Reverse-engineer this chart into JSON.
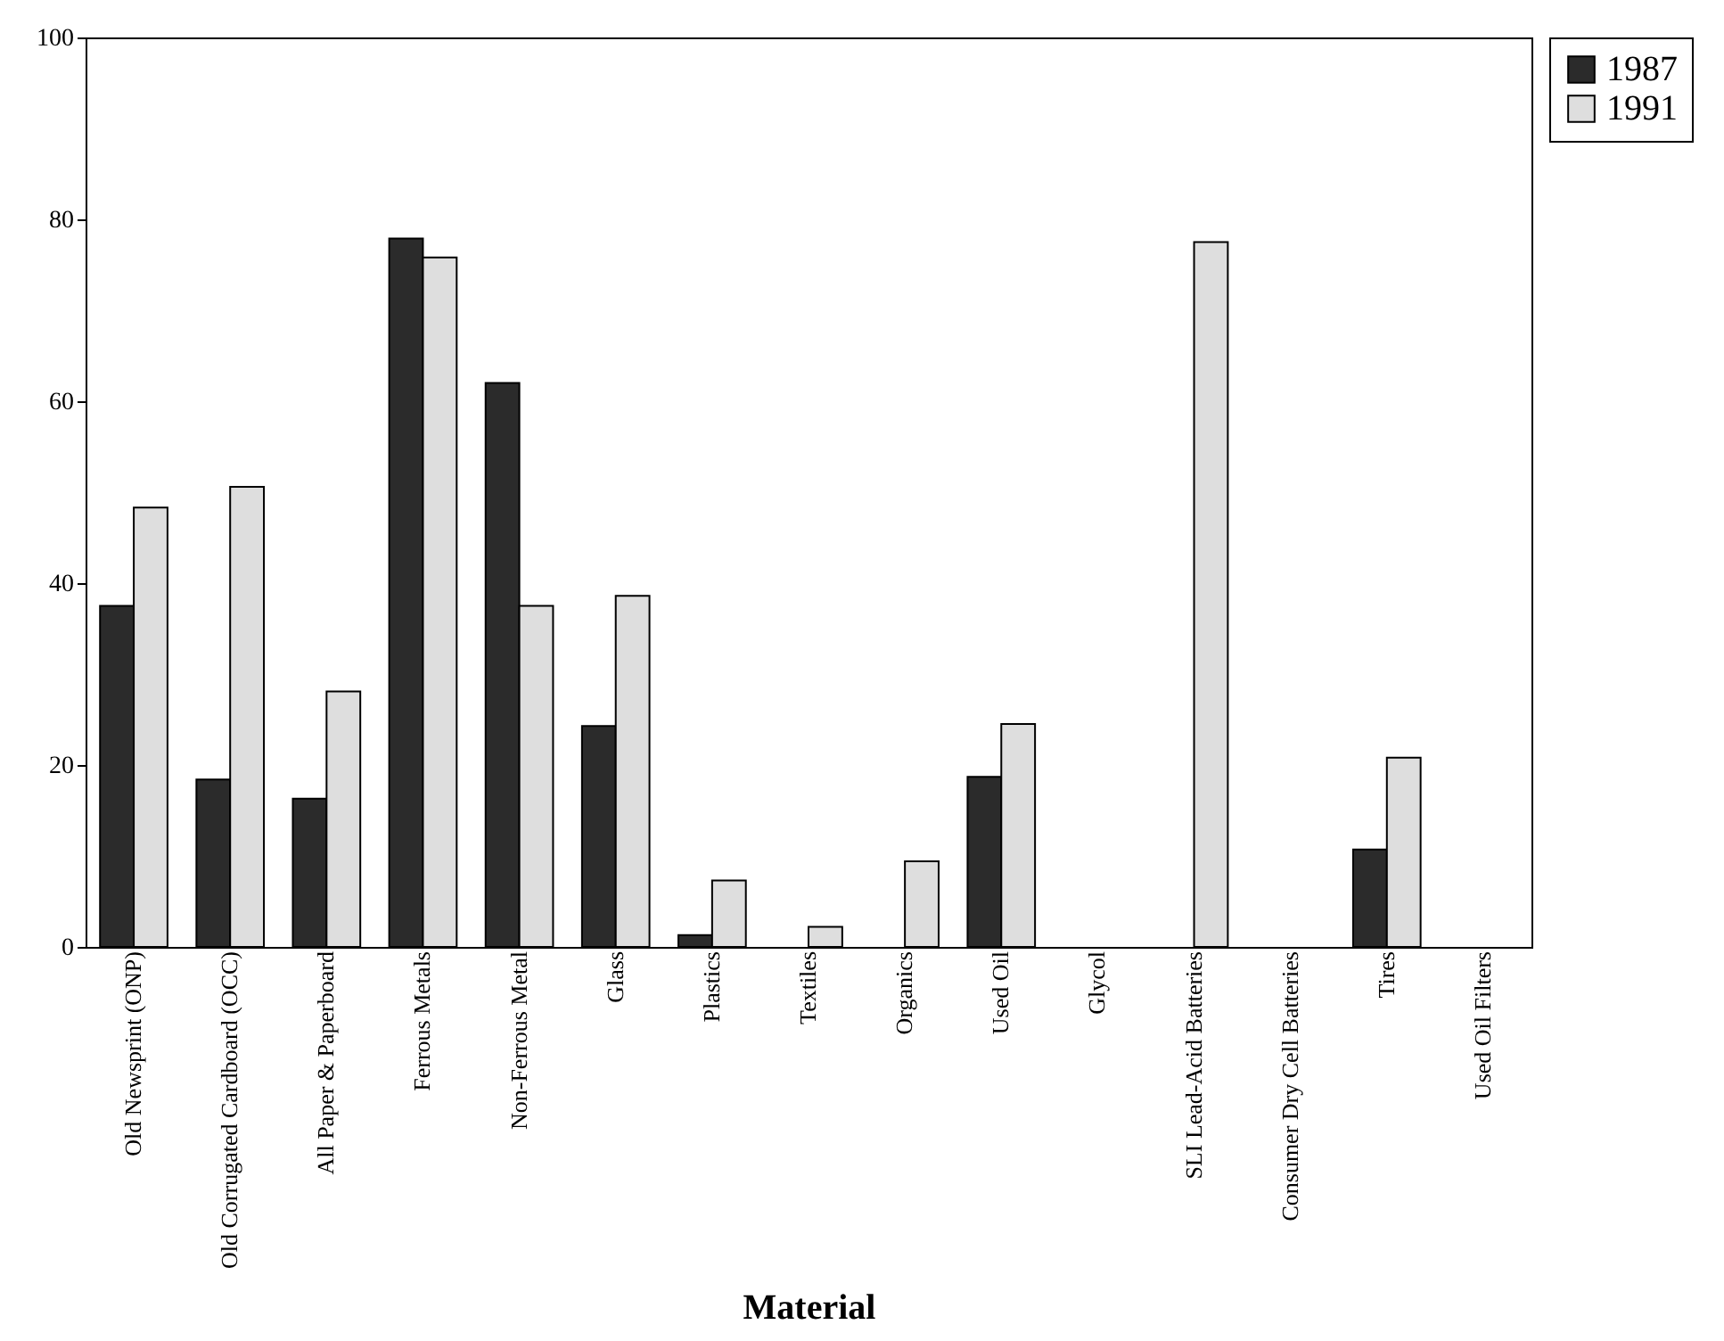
{
  "chart_data": {
    "type": "bar",
    "xlabel": "Material",
    "categories": [
      "Old Newsprint (ONP)",
      "Old Corrugated Cardboard (OCC)",
      "All Paper & Paperboard",
      "Ferrous Metals",
      "Non-Ferrous Metal",
      "Glass",
      "Plastics",
      "Textiles",
      "Organics",
      "Used Oil",
      "Glycol",
      "SLI Lead-Acid Batteries",
      "Consumer Dry Cell Batteries",
      "Tires",
      "Used Oil Filters"
    ],
    "series": [
      {
        "name": "1987",
        "color": "#2b2b2b",
        "values": [
          37.5,
          18.4,
          16.3,
          77.9,
          62,
          24.3,
          1.3,
          null,
          null,
          18.7,
          null,
          null,
          null,
          10.7,
          null
        ]
      },
      {
        "name": "1991",
        "color": "#dedede",
        "values": [
          48.3,
          50.6,
          28.1,
          75.8,
          37.5,
          38.6,
          7.3,
          2.2,
          9.4,
          24.5,
          null,
          77.5,
          null,
          20.8,
          null
        ]
      }
    ],
    "ylim": [
      0,
      100
    ],
    "yticks": [
      0,
      20,
      40,
      60,
      80,
      100
    ],
    "grid": false,
    "legend": "top right"
  }
}
